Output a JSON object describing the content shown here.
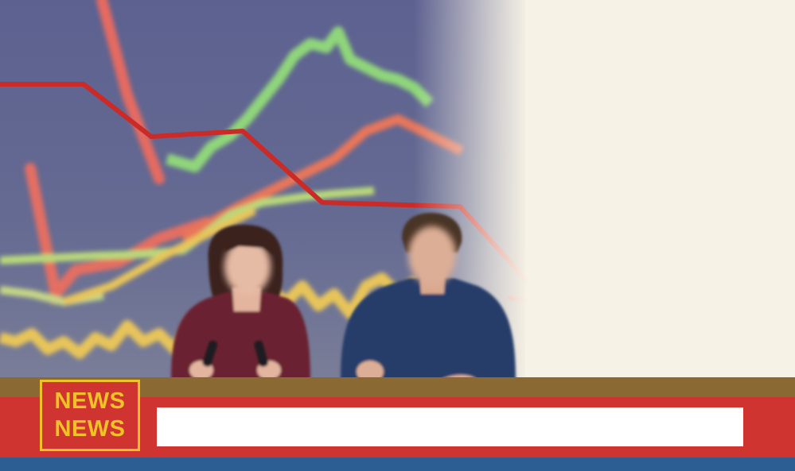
{
  "logo": {
    "line1": "NEWS",
    "line2": "NEWS"
  },
  "ticker": {
    "text": ""
  },
  "colors": {
    "banner": "#cf3430",
    "logo_text": "#f0c227",
    "desk": "#8a6a32",
    "footer": "#2d5e93",
    "backdrop": "#f7f2e6",
    "chart_bg": "#5f6690",
    "trend_arrow": "#cc2a26"
  }
}
